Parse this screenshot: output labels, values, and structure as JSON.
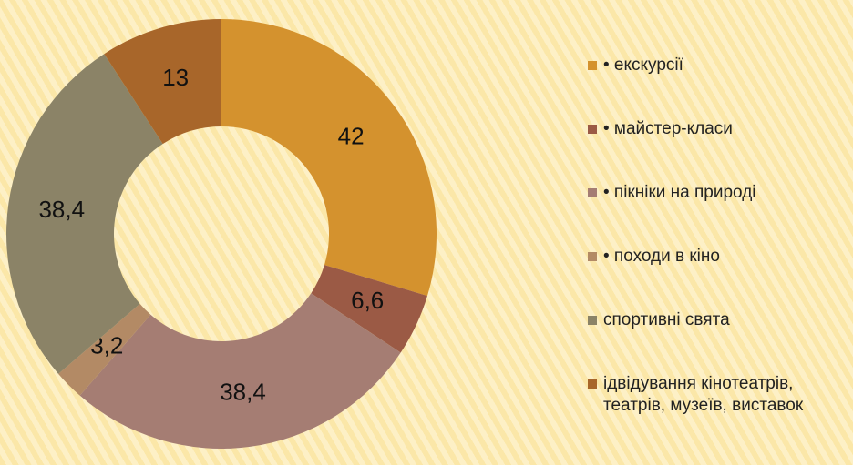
{
  "chart_data": {
    "type": "donut",
    "categories": [
      "• екскурсії",
      "• майстер-класи",
      "• пікніки на природі",
      "• походи в кіно",
      "спортивні свята",
      "ідвідування кінотеатрів, театрів, музеїв, виставок"
    ],
    "values": [
      42,
      6.6,
      38.4,
      3.2,
      38.4,
      13
    ],
    "value_labels": [
      "42",
      "6,6",
      "38,4",
      "3,2",
      "38,4",
      "13"
    ],
    "colors": [
      "#d4922e",
      "#9b5a45",
      "#a57d73",
      "#b38a65",
      "#8b8367",
      "#a8662a"
    ],
    "legend": "right"
  }
}
